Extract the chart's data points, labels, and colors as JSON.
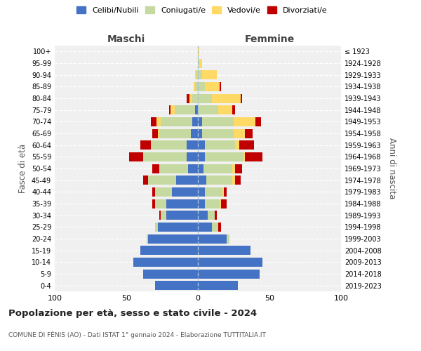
{
  "age_groups": [
    "0-4",
    "5-9",
    "10-14",
    "15-19",
    "20-24",
    "25-29",
    "30-34",
    "35-39",
    "40-44",
    "45-49",
    "50-54",
    "55-59",
    "60-64",
    "65-69",
    "70-74",
    "75-79",
    "80-84",
    "85-89",
    "90-94",
    "95-99",
    "100+"
  ],
  "birth_years": [
    "2019-2023",
    "2014-2018",
    "2009-2013",
    "2004-2008",
    "1999-2003",
    "1994-1998",
    "1989-1993",
    "1984-1988",
    "1979-1983",
    "1974-1978",
    "1969-1973",
    "1964-1968",
    "1959-1963",
    "1954-1958",
    "1949-1953",
    "1944-1948",
    "1939-1943",
    "1934-1938",
    "1929-1933",
    "1924-1928",
    "≤ 1923"
  ],
  "maschi": {
    "celibi": [
      30,
      38,
      45,
      40,
      35,
      28,
      22,
      22,
      18,
      15,
      7,
      8,
      8,
      5,
      4,
      2,
      0,
      0,
      0,
      0,
      0
    ],
    "coniugati": [
      0,
      0,
      0,
      0,
      1,
      2,
      4,
      8,
      12,
      20,
      20,
      30,
      25,
      22,
      22,
      14,
      4,
      2,
      1,
      0,
      0
    ],
    "vedovi": [
      0,
      0,
      0,
      0,
      0,
      0,
      0,
      0,
      0,
      0,
      0,
      0,
      0,
      1,
      3,
      3,
      2,
      1,
      1,
      0,
      0
    ],
    "divorziati": [
      0,
      0,
      0,
      0,
      0,
      0,
      1,
      2,
      2,
      3,
      5,
      10,
      7,
      4,
      4,
      1,
      2,
      0,
      0,
      0,
      0
    ]
  },
  "femmine": {
    "nubili": [
      28,
      43,
      45,
      37,
      20,
      10,
      7,
      5,
      5,
      6,
      4,
      5,
      5,
      3,
      3,
      0,
      0,
      0,
      0,
      0,
      0
    ],
    "coniugate": [
      0,
      0,
      0,
      0,
      2,
      4,
      5,
      10,
      12,
      18,
      20,
      27,
      21,
      22,
      22,
      14,
      10,
      5,
      3,
      1,
      0
    ],
    "vedove": [
      0,
      0,
      0,
      0,
      0,
      0,
      0,
      1,
      1,
      2,
      2,
      1,
      3,
      8,
      15,
      10,
      20,
      10,
      10,
      2,
      1
    ],
    "divorziate": [
      0,
      0,
      0,
      0,
      0,
      2,
      1,
      4,
      2,
      4,
      5,
      12,
      10,
      5,
      4,
      2,
      1,
      1,
      0,
      0,
      0
    ]
  },
  "colors": {
    "celibi": "#4472C4",
    "coniugati": "#C5D9A0",
    "vedovi": "#FFD966",
    "divorziati": "#C00000"
  },
  "legend_labels": [
    "Celibi/Nubili",
    "Coniugati/e",
    "Vedovi/e",
    "Divorziati/e"
  ],
  "title_main": "Popolazione per età, sesso e stato civile - 2024",
  "title_sub": "COMUNE DI FÉNIS (AO) - Dati ISTAT 1° gennaio 2024 - Elaborazione TUTTITALIA.IT",
  "maschi_label": "Maschi",
  "femmine_label": "Femmine",
  "ylabel_left": "Fasce di età",
  "ylabel_right": "Anni di nascita",
  "xlim": 100,
  "bg_color": "#f0f0f0"
}
